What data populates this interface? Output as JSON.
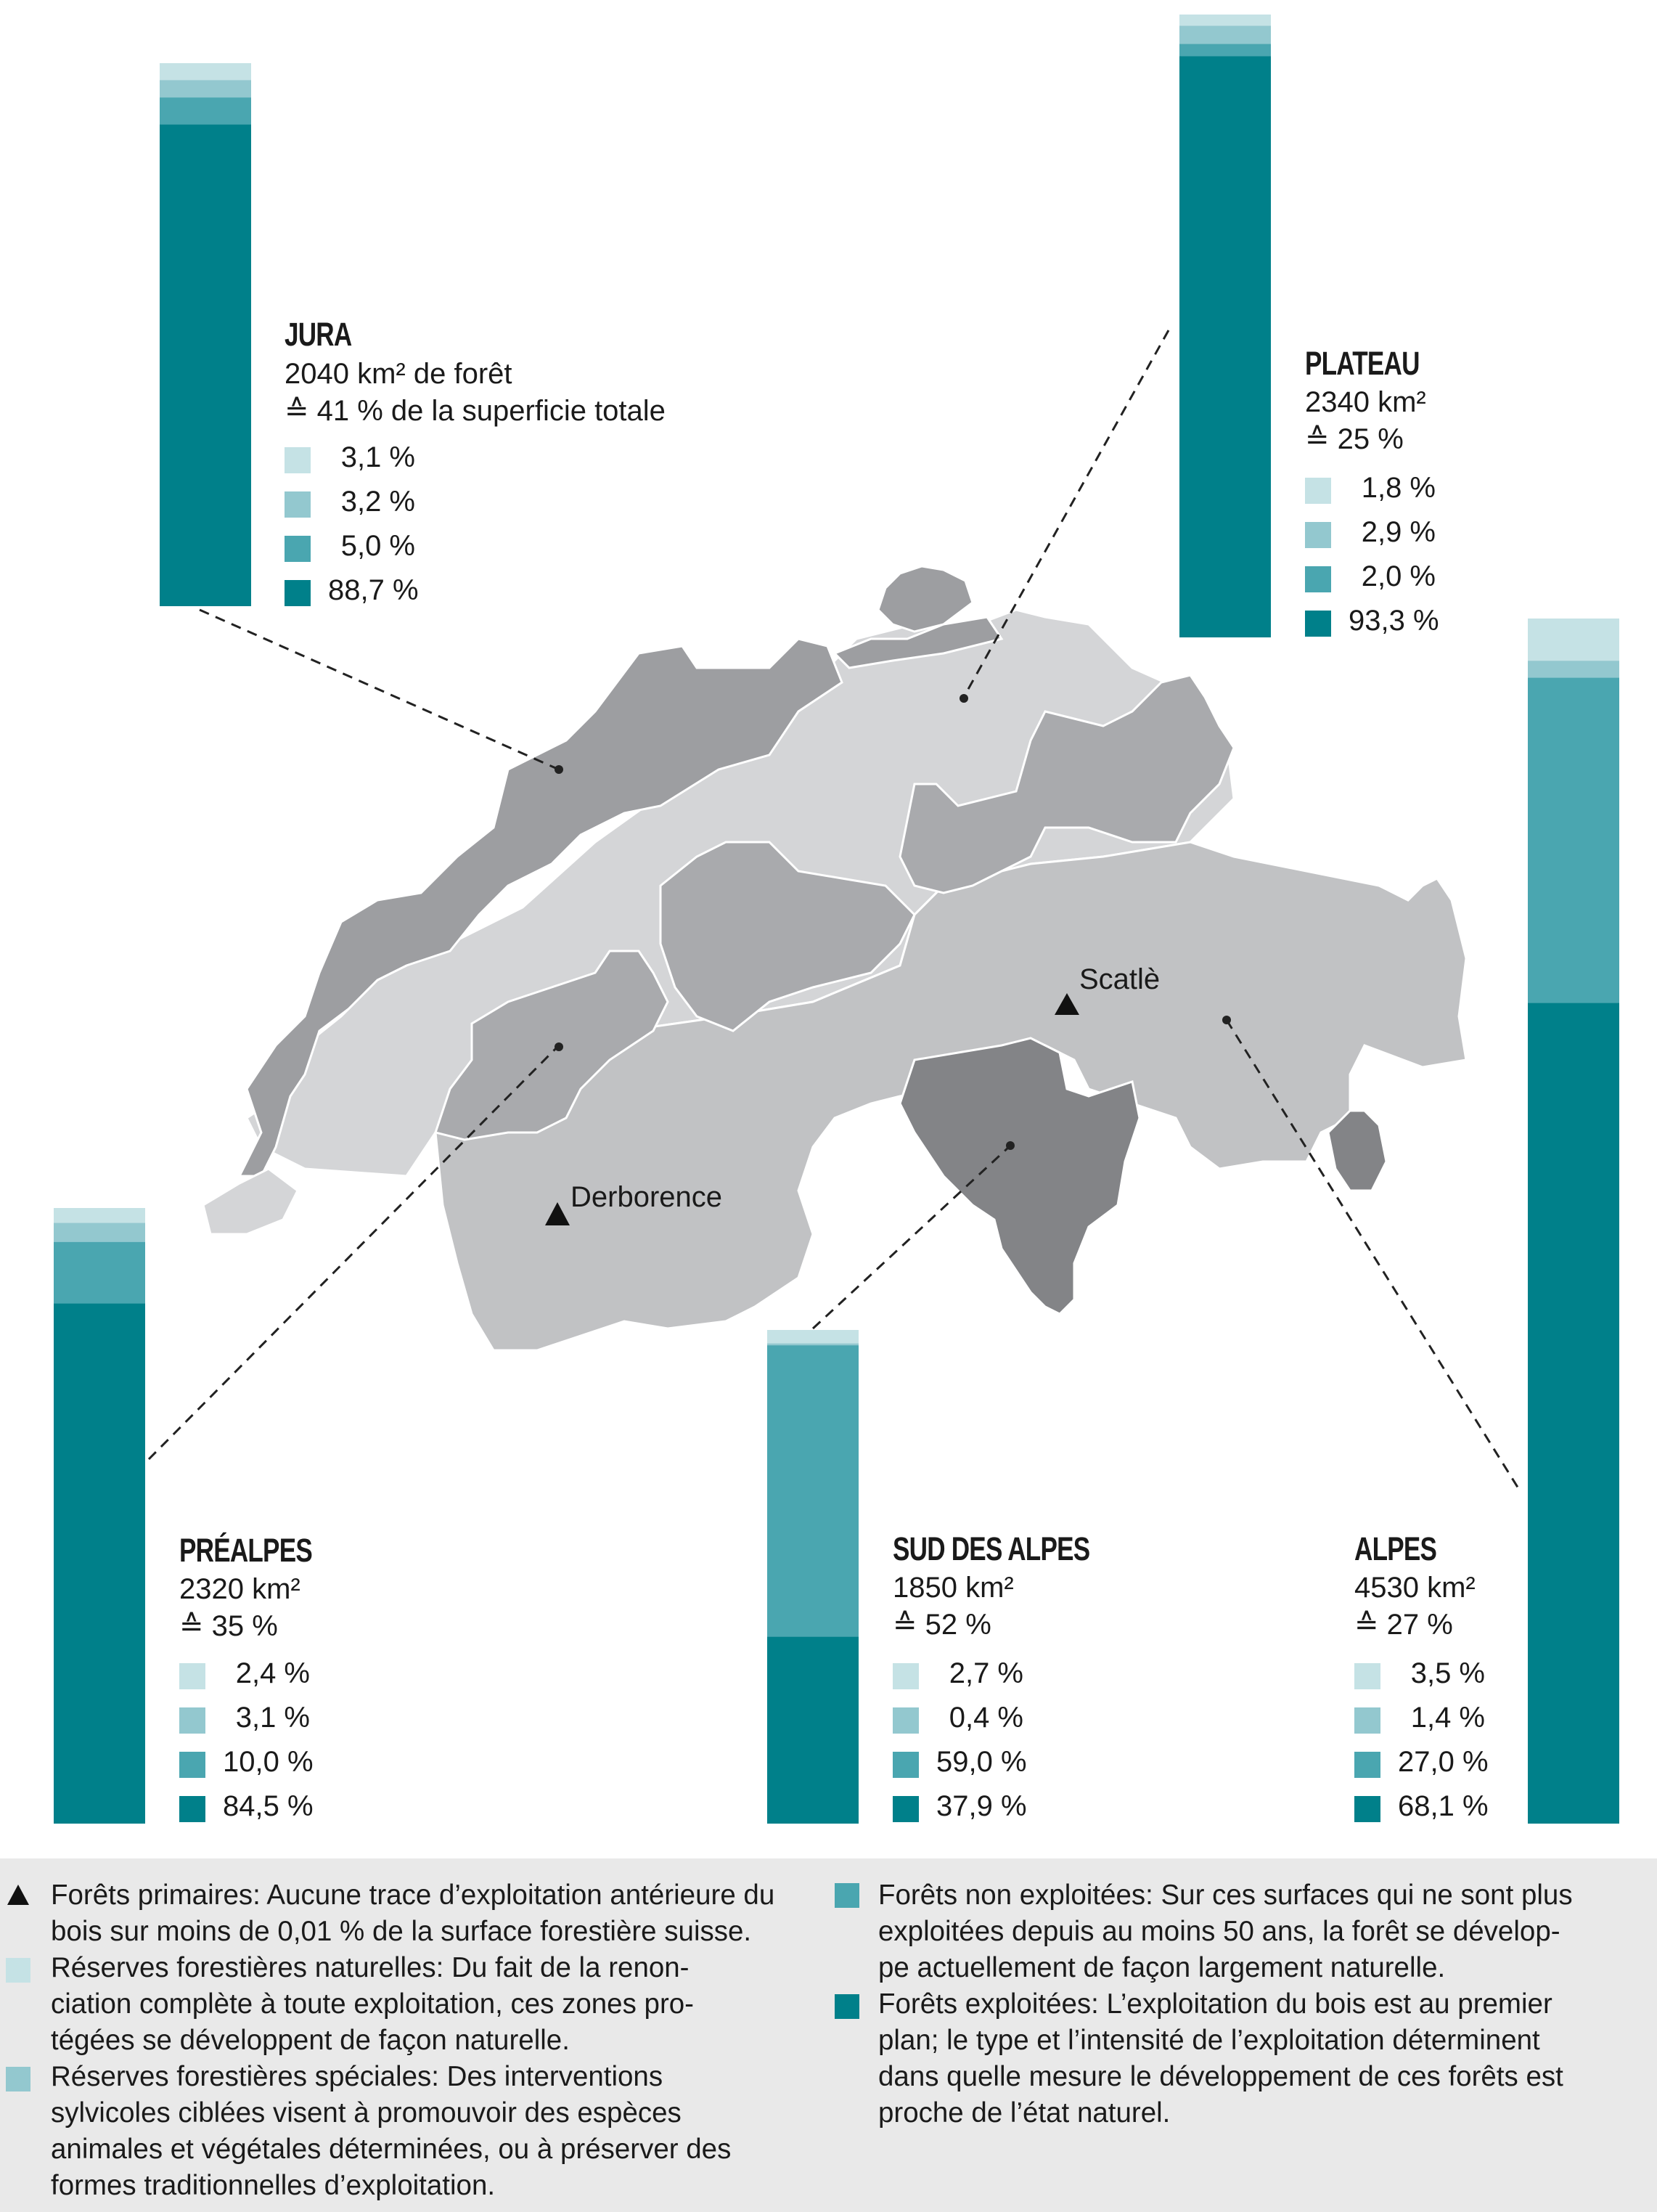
{
  "chart_data": {
    "type": "bar",
    "categories": [
      "Jura",
      "Plateau",
      "Préalpes",
      "Sud des Alpes",
      "Alpes"
    ],
    "series": [
      {
        "name": "Réserves forestières naturelles",
        "values": [
          3.1,
          1.8,
          2.4,
          2.7,
          3.5
        ]
      },
      {
        "name": "Réserves forestières spéciales",
        "values": [
          3.2,
          2.9,
          3.1,
          0.4,
          1.4
        ]
      },
      {
        "name": "Forêts non exploitées",
        "values": [
          5.0,
          2.0,
          10.0,
          59.0,
          27.0
        ]
      },
      {
        "name": "Forêts exploitées",
        "values": [
          88.7,
          93.3,
          84.5,
          37.9,
          68.1
        ]
      }
    ],
    "forest_area_km2": [
      2040,
      2340,
      2320,
      1850,
      4530
    ],
    "share_of_total_area_pct": [
      41,
      25,
      35,
      52,
      27
    ],
    "unit": "%",
    "stacked": true
  },
  "colors": {
    "naturelles": "#c5e2e5",
    "speciales": "#93c8cf",
    "non_exploitees": "#4aa6b0",
    "exploitees": "#00808a",
    "footer_bg": "#e9e9e9"
  },
  "regions": {
    "jura": {
      "title": "JURA",
      "area": "2040 km² de forêt",
      "share": "≙ 41 % de la superficie totale",
      "pcts": [
        "3,1 %",
        "3,2 %",
        "5,0 %",
        "88,7 %"
      ]
    },
    "plateau": {
      "title": "PLATEAU",
      "area": "2340 km²",
      "share": "≙ 25 %",
      "pcts": [
        "1,8 %",
        "2,9 %",
        "2,0 %",
        "93,3 %"
      ]
    },
    "prealpes": {
      "title": "PRÉALPES",
      "area": "2320 km²",
      "share": "≙ 35 %",
      "pcts": [
        "2,4 %",
        "3,1 %",
        "10,0 %",
        "84,5 %"
      ]
    },
    "sud": {
      "title": "SUD DES ALPES",
      "area": "1850 km²",
      "share": "≙ 52 %",
      "pcts": [
        "2,7 %",
        "0,4 %",
        "59,0 %",
        "37,9 %"
      ]
    },
    "alpes": {
      "title": "ALPES",
      "area": "4530 km²",
      "share": "≙ 27 %",
      "pcts": [
        "3,5 %",
        "1,4 %",
        "27,0 %",
        "68,1 %"
      ]
    }
  },
  "places": {
    "scatle": "Scatlè",
    "derborence": "Derborence"
  },
  "legend": {
    "left": [
      "Forêts primaires: Aucune trace d’exploitation antérieure du",
      "bois sur moins de 0,01 % de la surface forestière suisse.",
      "Réserves forestières naturelles: Du fait de la renon-",
      "ciation complète à toute exploitation, ces zones pro-",
      "tégées se développent de façon naturelle.",
      "Réserves forestières spéciales: Des interventions",
      "sylvicoles ciblées visent à promouvoir des espèces",
      "animales et végétales déterminées, ou à préserver des",
      "formes traditionnelles d’exploitation."
    ],
    "right": [
      "Forêts non exploitées: Sur ces surfaces qui ne sont plus",
      "exploitées depuis au moins 50 ans, la forêt se dévelop-",
      "pe actuellement de façon largement naturelle.",
      "Forêts exploitées: L’exploitation du bois est au premier",
      "plan; le type et l’intensité de l’exploitation déterminent",
      "dans quelle mesure le développement de ces forêts est",
      "proche de l’état naturel."
    ]
  }
}
